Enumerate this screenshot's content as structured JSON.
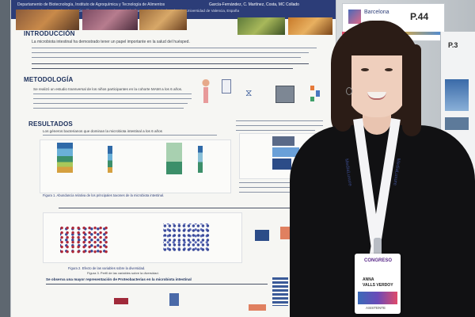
{
  "poster": {
    "header_line1": "Departamento de Biotecnología, Instituto de Agroquímica y Tecnología de Alimentos",
    "header_line2": "Consejo Superior de Investigaciones Científicas (IATA-CSIC), Hospital Clínico Universitario de Valencia, Universidad de Valencia, España",
    "authors": "García-Fernández, C. Martínez, Costa, MC Collado",
    "introduccion": "INTRODUCCIÓN",
    "intro_text": "La microbiota intestinal ha demostrado tener un papel importante en la salud del huésped.",
    "metodologia": "METODOLOGÍA",
    "metodo_text": "Se realizó un estudio transversal de los niños participantes en la cohorte MAMI a los 6 años.",
    "resultados": "RESULTADOS",
    "resultados_text": "Los géneros bacterianos que dominan la microbiota intestinal a los 6 años",
    "figure1": "Figura 1. Abundancia relativa de los principales taxones de la microbiota intestinal.",
    "figure2": "Figura 2. Efecto de las variables sobre la diversidad.",
    "figure3": "Figura 3. Perfil de las variables sobre la diversidad.",
    "conclusion_text": "Se observa una mayor representación de Proteobacterias en la microbiota intestinal"
  },
  "sign": {
    "brand": "Barcelona",
    "poster_number": "P.44",
    "side_poster_number": "P.3"
  },
  "badge": {
    "event": "CONGRESO",
    "name_line1": "ANNA",
    "name_line2": "VALLS VERDOY",
    "role": "ASISTENTE",
    "lanyard_text": "MediaLuxure"
  },
  "colors": {
    "poster_bg": "#f6f6f3",
    "poster_header": "#2c3d78",
    "section_text": "#1a2e5a",
    "sweater": "#111113",
    "hair": "#2b1c16",
    "badge_bg": "#ffffff",
    "lanyard": "#f4f4f6"
  }
}
